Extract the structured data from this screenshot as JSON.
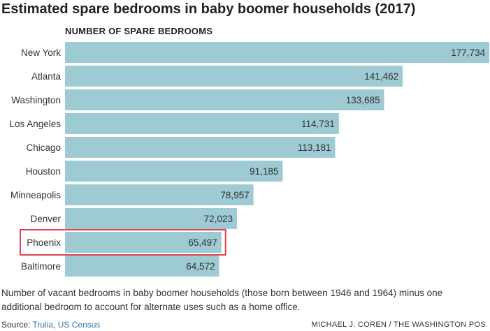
{
  "header": {
    "title": "Estimated spare bedrooms in baby boomer households (2017)",
    "subtitle": "NUMBER OF SPARE BEDROOMS"
  },
  "chart_data": {
    "type": "bar",
    "orientation": "horizontal",
    "title": "Estimated spare bedrooms in baby boomer households (2017)",
    "subtitle": "NUMBER OF SPARE BEDROOMS",
    "categories": [
      "New York",
      "Atlanta",
      "Washington",
      "Los Angeles",
      "Chicago",
      "Houston",
      "Minneapolis",
      "Denver",
      "Phoenix",
      "Baltimore"
    ],
    "values": [
      177734,
      141462,
      133685,
      114731,
      113181,
      91185,
      78957,
      72023,
      65497,
      64572
    ],
    "value_labels": [
      "177,734",
      "141,462",
      "133,685",
      "114,731",
      "113,181",
      "91,185",
      "78,957",
      "72,023",
      "65,497",
      "64,572"
    ],
    "xlim": [
      0,
      177734
    ],
    "highlighted_category": "Phoenix",
    "grid": false,
    "legend": "none",
    "colors": {
      "bar": "#9dcad3",
      "highlight_border": "#e0434b",
      "label_text": "#333333"
    }
  },
  "footer": {
    "note": "Number of vacant bedrooms in baby boomer households (those born between 1946 and 1964) minus one additional bedroom to account for alternate uses such as a home office.",
    "source_prefix": "Source: ",
    "source_links": [
      "Trulia",
      "US Census"
    ],
    "source_separator": ", ",
    "credit": "MICHAEL J. COREN / THE WASHINGTON POS"
  }
}
